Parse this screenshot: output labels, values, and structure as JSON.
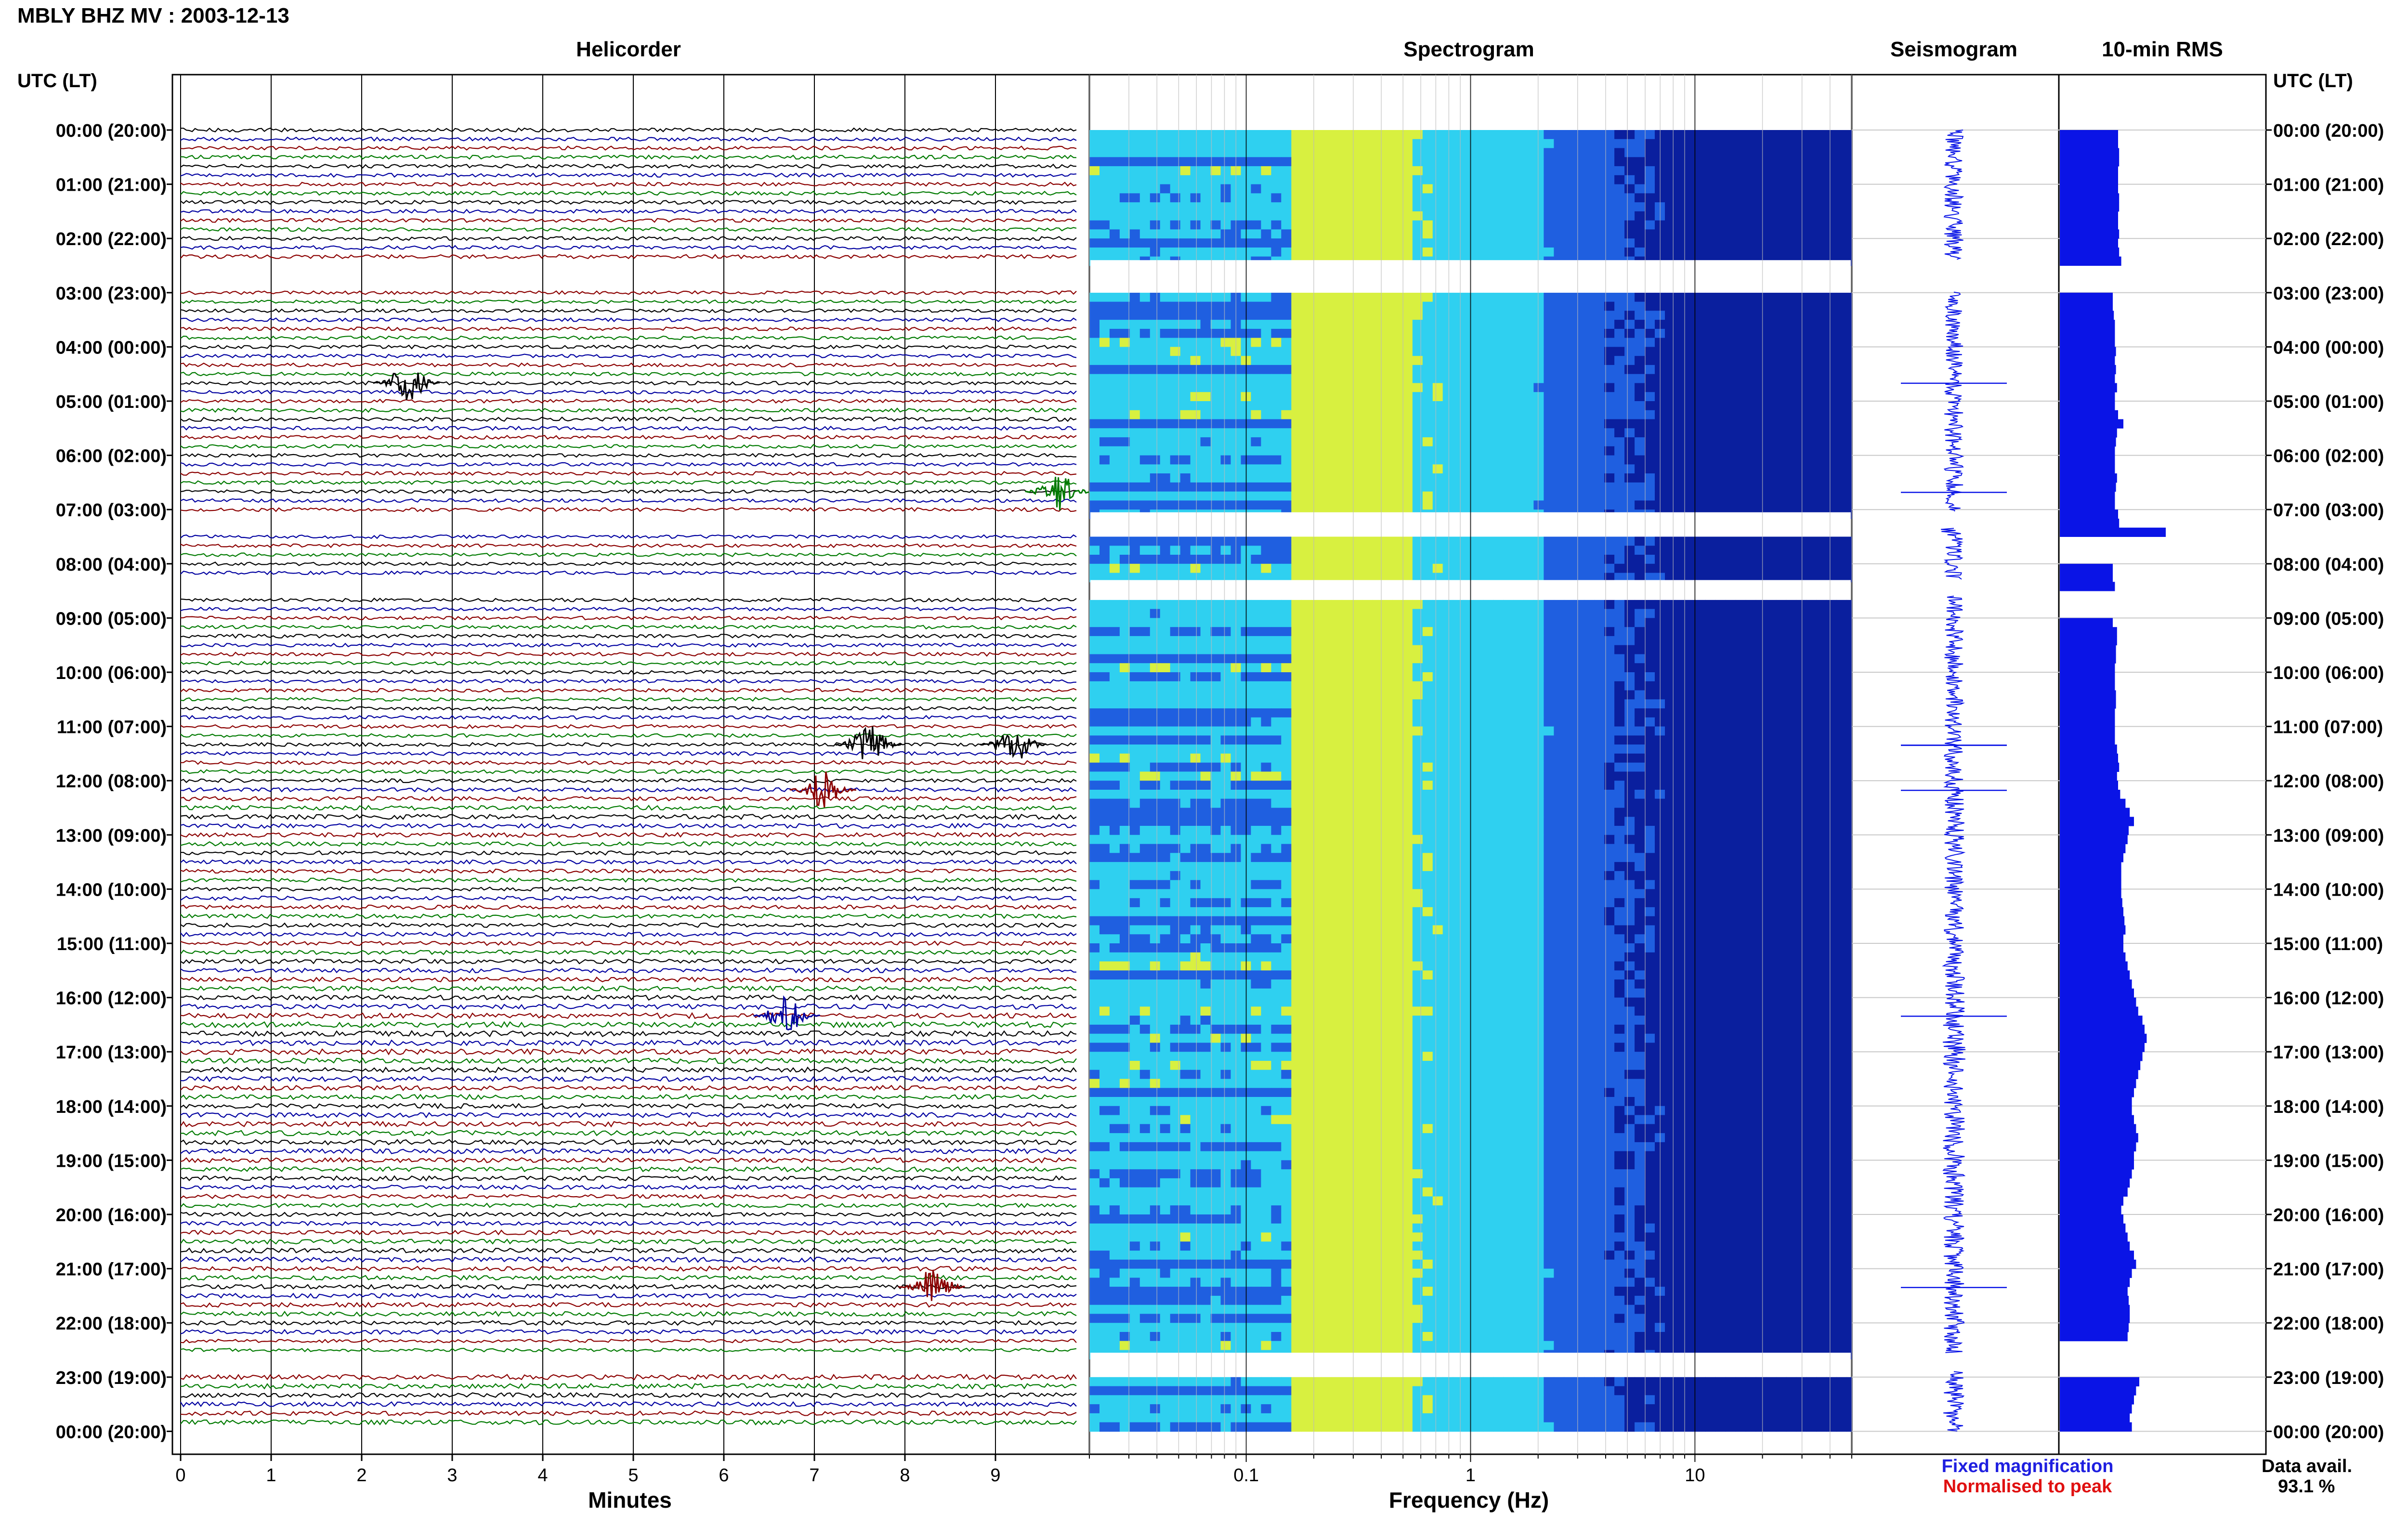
{
  "title": "MBLY BHZ MV : 2003-12-13",
  "panels": {
    "helicorder": "Helicorder",
    "spectrogram": "Spectrogram",
    "seismogram": "Seismogram",
    "rms": "10-min RMS"
  },
  "utc_header_left": "UTC (LT)",
  "utc_header_right": "UTC (LT)",
  "hour_labels": [
    "00:00 (20:00)",
    "01:00 (21:00)",
    "02:00 (22:00)",
    "03:00 (23:00)",
    "04:00 (00:00)",
    "05:00 (01:00)",
    "06:00 (02:00)",
    "07:00 (03:00)",
    "08:00 (04:00)",
    "09:00 (05:00)",
    "10:00 (06:00)",
    "11:00 (07:00)",
    "12:00 (08:00)",
    "13:00 (09:00)",
    "14:00 (10:00)",
    "15:00 (11:00)",
    "16:00 (12:00)",
    "17:00 (13:00)",
    "18:00 (14:00)",
    "19:00 (15:00)",
    "20:00 (16:00)",
    "21:00 (17:00)",
    "22:00 (18:00)",
    "23:00 (19:00)",
    "00:00 (20:00)"
  ],
  "helicorder_xlabel": "Minutes",
  "helicorder_xticks": [
    "0",
    "1",
    "2",
    "3",
    "4",
    "5",
    "6",
    "7",
    "8",
    "9"
  ],
  "spectrogram_xlabel": "Frequency (Hz)",
  "spectrogram_xticks": [
    "0.1",
    "1",
    "10"
  ],
  "legend": {
    "fixed": "Fixed magnification",
    "normalised": "Normalised to peak",
    "fixed_color": "#1f1fe0",
    "normalised_color": "#e01010"
  },
  "data_avail_label": "Data avail.",
  "data_avail_value": "93.1 %",
  "colors": {
    "trace_cycle": [
      "#000000",
      "#0000a0",
      "#8b0000",
      "#007a00"
    ],
    "rms_fill": "#0a14e6",
    "seismogram": "#0a14e6"
  },
  "chart_data": {
    "type": "heatmap",
    "station": "MBLY BHZ MV",
    "date": "2003-12-13",
    "helicorder": {
      "x_range_minutes": [
        0,
        10
      ],
      "rows_per_hour": 6,
      "hours": 24
    },
    "spectrogram": {
      "x_scale": "log",
      "x_range_hz": [
        0.02,
        50
      ],
      "colormap": [
        "#0a1f9e",
        "#1f5fe0",
        "#2fd0f0",
        "#d8f040"
      ]
    },
    "data_gaps_utc": [
      [
        2.4,
        3.0
      ],
      [
        7.05,
        7.35
      ],
      [
        8.3,
        8.6
      ],
      [
        22.55,
        22.9
      ]
    ],
    "events": [
      {
        "time_utc": "04:40",
        "minute": 2.5,
        "color": "#000000"
      },
      {
        "time_utc": "06:40",
        "minute": 9.7,
        "color": "#007a00"
      },
      {
        "time_utc": "11:20",
        "minute": 7.6,
        "color": "#000000"
      },
      {
        "time_utc": "11:20",
        "minute": 9.2,
        "color": "#000000"
      },
      {
        "time_utc": "12:10",
        "minute": 7.1,
        "color": "#8b0000"
      },
      {
        "time_utc": "16:20",
        "minute": 6.7,
        "color": "#0000a0"
      },
      {
        "time_utc": "21:20",
        "minute": 8.3,
        "color": "#8b0000"
      }
    ],
    "rms_10min_relative": [
      0.55,
      0.55,
      0.56,
      0.56,
      0.55,
      0.55,
      0.55,
      0.56,
      0.56,
      0.55,
      0.55,
      0.56,
      0.55,
      0.56,
      0.58,
      null,
      null,
      null,
      0.5,
      0.5,
      0.51,
      0.52,
      0.52,
      0.52,
      0.53,
      0.52,
      0.53,
      0.52,
      0.54,
      0.52,
      0.52,
      0.55,
      0.6,
      0.54,
      0.53,
      0.52,
      0.52,
      0.52,
      0.54,
      0.53,
      0.52,
      0.52,
      0.55,
      0.56,
      1.0,
      null,
      null,
      null,
      0.5,
      0.5,
      0.52,
      null,
      null,
      null,
      0.5,
      0.54,
      0.54,
      0.53,
      0.53,
      0.52,
      0.52,
      0.52,
      0.53,
      0.53,
      0.52,
      0.52,
      0.52,
      0.52,
      0.54,
      0.55,
      0.56,
      0.54,
      0.55,
      0.57,
      0.62,
      0.66,
      0.7,
      0.65,
      0.64,
      0.62,
      0.6,
      0.58,
      0.58,
      0.58,
      0.58,
      0.59,
      0.6,
      0.61,
      0.62,
      0.6,
      0.6,
      0.62,
      0.64,
      0.66,
      0.68,
      0.7,
      0.72,
      0.74,
      0.78,
      0.8,
      0.82,
      0.8,
      0.78,
      0.76,
      0.74,
      0.72,
      0.7,
      0.68,
      0.68,
      0.7,
      0.72,
      0.74,
      0.72,
      0.7,
      0.7,
      0.68,
      0.66,
      0.64,
      0.6,
      0.58,
      0.6,
      0.62,
      0.64,
      0.66,
      0.7,
      0.72,
      0.68,
      0.66,
      0.64,
      0.65,
      0.66,
      0.66,
      0.65,
      0.64,
      null,
      null,
      null,
      null,
      0.75,
      0.72,
      0.7,
      0.68,
      0.66,
      0.68
    ]
  }
}
